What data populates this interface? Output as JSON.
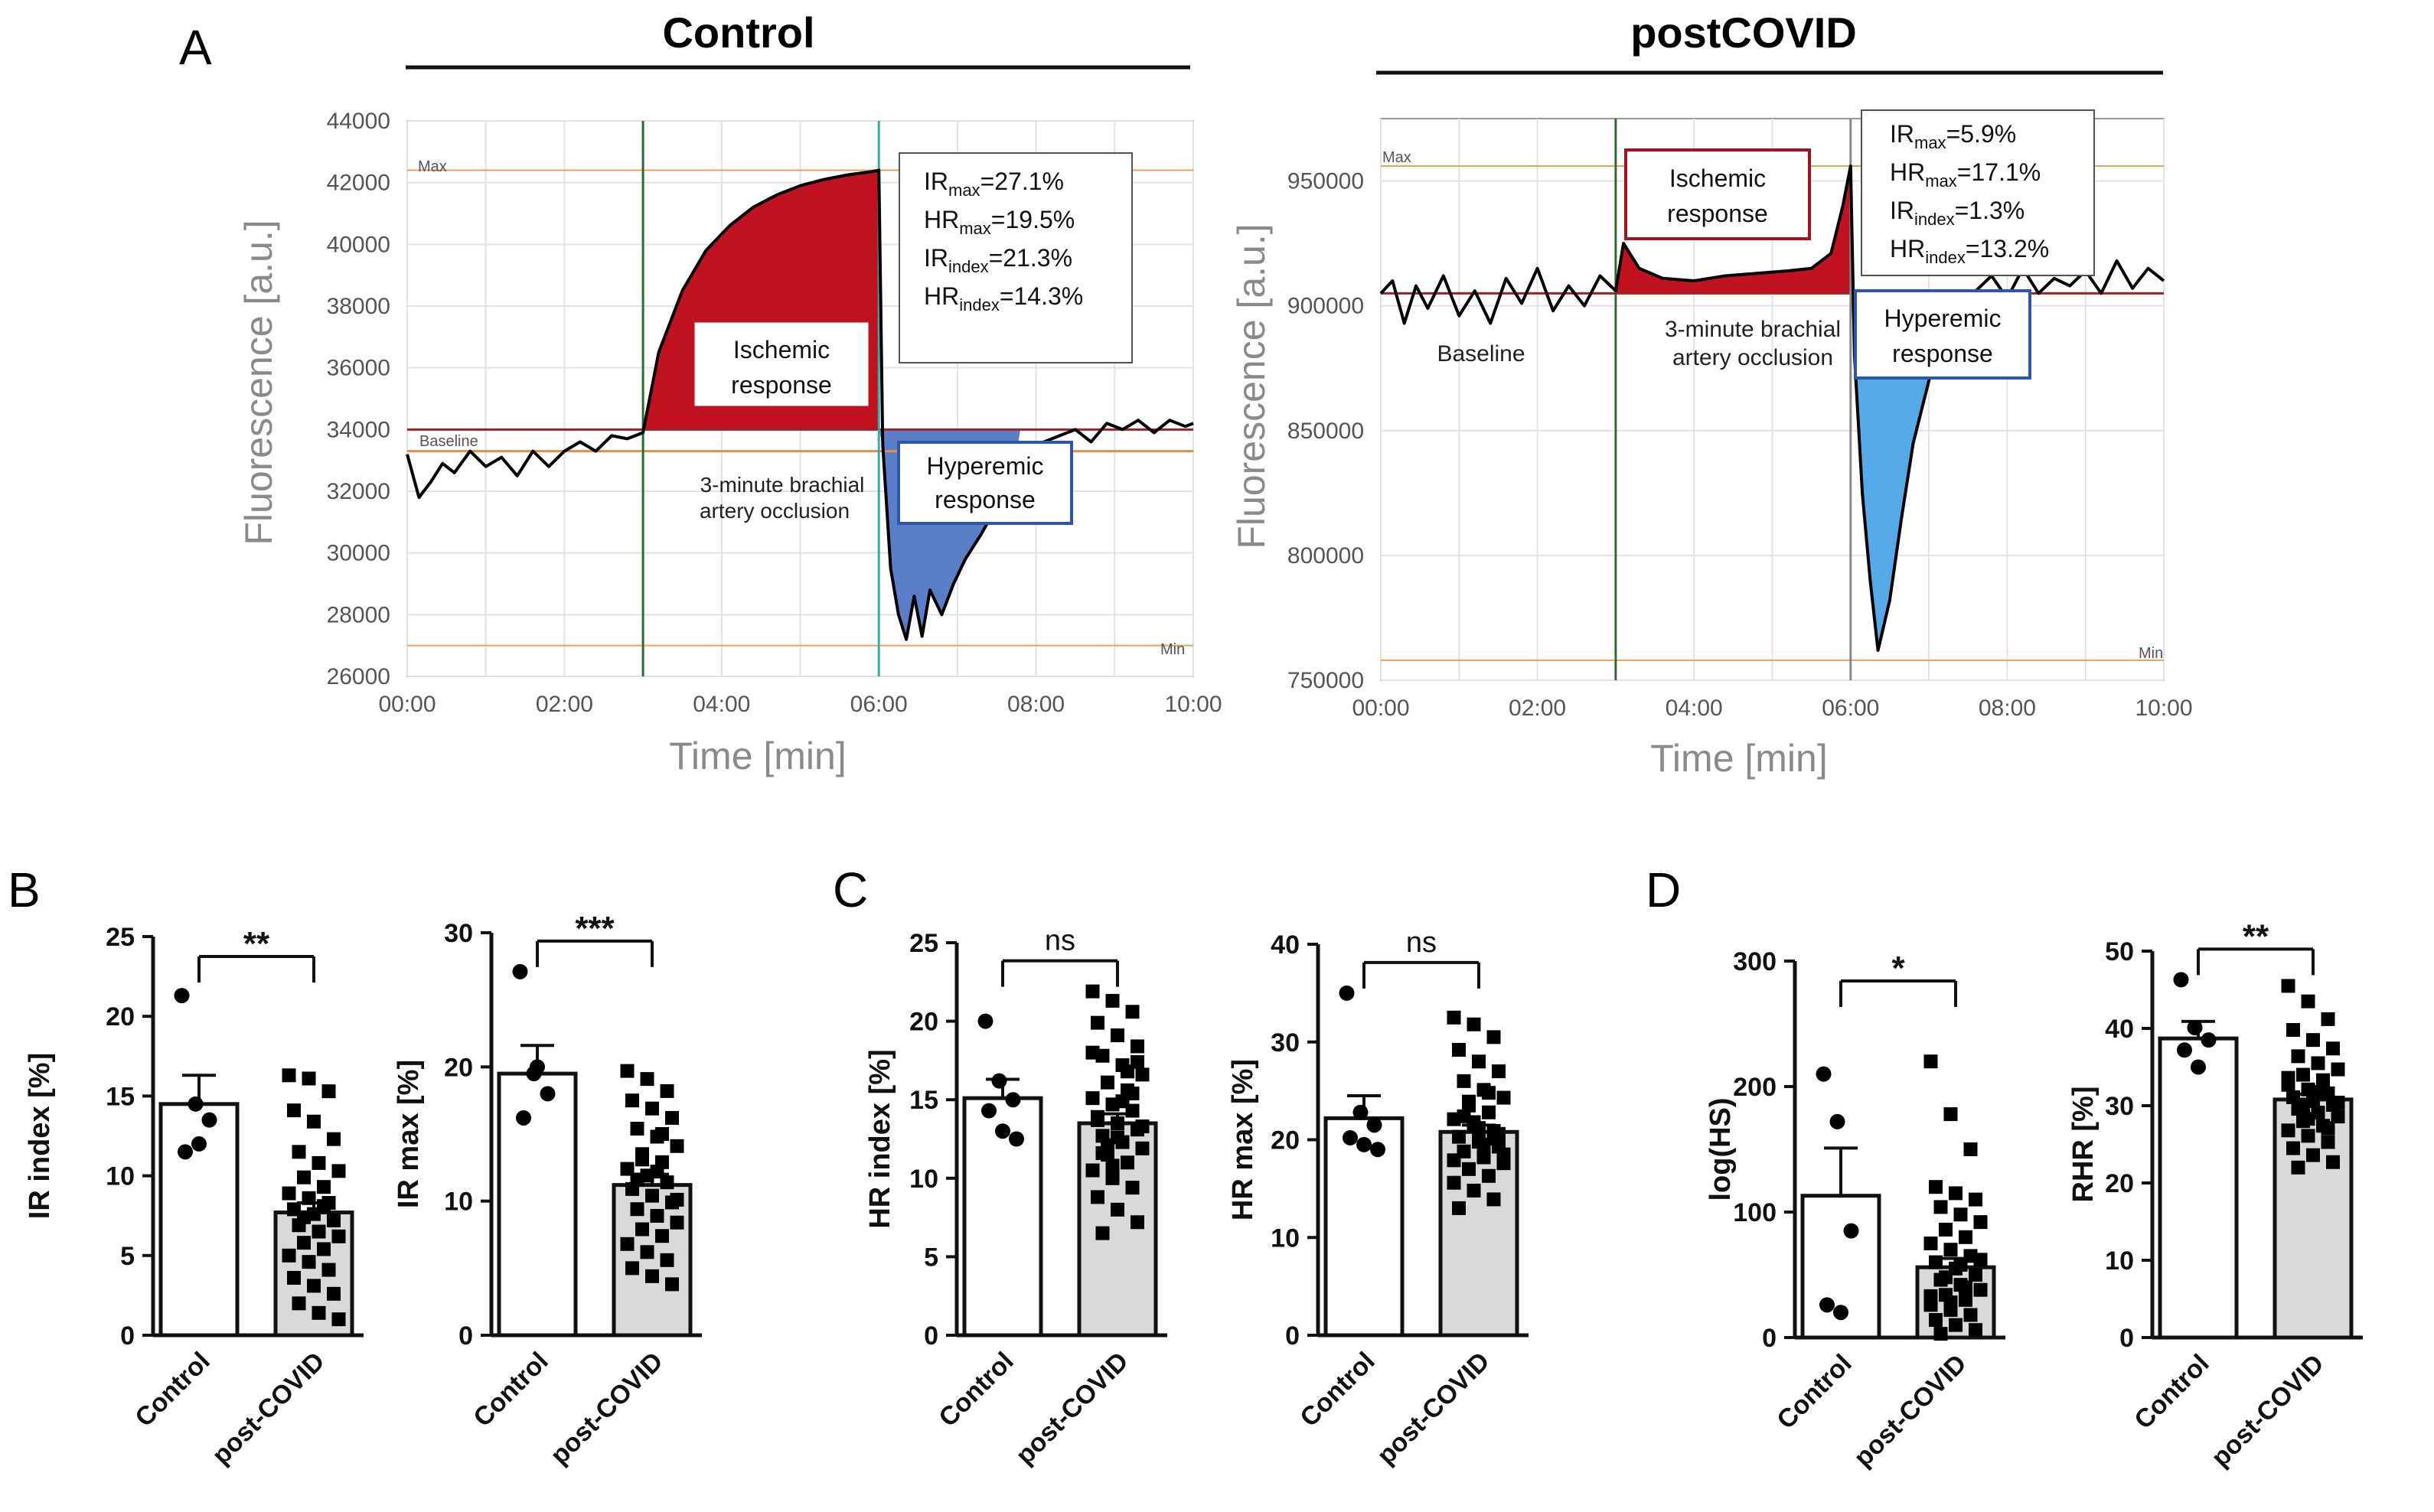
{
  "labels": {
    "panel_a": "A",
    "panel_b": "B",
    "panel_c": "C",
    "panel_d": "D"
  },
  "chart_data": [
    {
      "type": "line",
      "id": "control_trace",
      "title": "Control",
      "xlabel": "Time [min]",
      "ylabel": "Fluorescence [a.u.]",
      "xlim": [
        0,
        10
      ],
      "ylim": [
        26000,
        44000
      ],
      "x_ticks": [
        "00:00",
        "02:00",
        "04:00",
        "06:00",
        "08:00",
        "10:00"
      ],
      "y_ticks": [
        "26000",
        "28000",
        "30000",
        "32000",
        "34000",
        "36000",
        "38000",
        "40000",
        "42000",
        "44000"
      ],
      "baseline_value": 34000,
      "max_value": 42400,
      "min_value": 27000,
      "reference_labels": {
        "max": "Max",
        "min": "Min",
        "baseline": "Baseline"
      },
      "occlusion_start": 3.0,
      "occlusion_end": 6.0,
      "occlusion_label": [
        "3-minute brachial",
        "artery occlusion"
      ],
      "ischemic_label": [
        "Ischemic",
        "response"
      ],
      "hyperemic_label": [
        "Hyperemic",
        "response"
      ],
      "stats": [
        {
          "main": "IR",
          "sub": "max",
          "value": "=27.1%"
        },
        {
          "main": "HR",
          "sub": "max",
          "value": "=19.5%"
        },
        {
          "main": "IR",
          "sub": "index",
          "value": "=21.3%"
        },
        {
          "main": "HR",
          "sub": "index",
          "value": "=14.3%"
        }
      ],
      "series": [
        {
          "name": "fluorescence",
          "x": [
            0.0,
            0.15,
            0.3,
            0.45,
            0.6,
            0.8,
            1.0,
            1.2,
            1.4,
            1.6,
            1.8,
            2.0,
            2.2,
            2.4,
            2.6,
            2.8,
            3.0,
            3.2,
            3.5,
            3.8,
            4.1,
            4.4,
            4.7,
            5.0,
            5.3,
            5.6,
            5.9,
            6.0,
            6.05,
            6.15,
            6.25,
            6.35,
            6.45,
            6.55,
            6.65,
            6.8,
            6.95,
            7.1,
            7.3,
            7.5,
            7.7,
            7.9,
            8.1,
            8.3,
            8.5,
            8.7,
            8.9,
            9.1,
            9.3,
            9.5,
            9.7,
            9.9,
            10.0
          ],
          "y": [
            33200,
            31800,
            32300,
            32900,
            32600,
            33300,
            32800,
            33100,
            32500,
            33300,
            32800,
            33300,
            33600,
            33300,
            33800,
            33700,
            33900,
            36500,
            38500,
            39800,
            40600,
            41200,
            41600,
            41900,
            42100,
            42250,
            42350,
            42400,
            33500,
            29500,
            28000,
            27200,
            28600,
            27300,
            28800,
            28000,
            29000,
            29800,
            30600,
            31500,
            32400,
            33100,
            33600,
            33800,
            34000,
            33600,
            34200,
            34000,
            34300,
            33900,
            34300,
            34100,
            34200
          ]
        }
      ]
    },
    {
      "type": "line",
      "id": "postcovid_trace",
      "title": "postCOVID",
      "xlabel": "Time [min]",
      "ylabel": "Fluorescence [a.u.]",
      "xlim": [
        0,
        10
      ],
      "ylim": [
        750000,
        975000
      ],
      "x_ticks": [
        "00:00",
        "02:00",
        "04:00",
        "06:00",
        "08:00",
        "10:00"
      ],
      "y_ticks": [
        "750000",
        "800000",
        "850000",
        "900000",
        "950000"
      ],
      "baseline_value": 905000,
      "max_value": 956000,
      "min_value": 758000,
      "reference_labels": {
        "max": "Max",
        "min": "Min",
        "baseline": "Baseline"
      },
      "occlusion_start": 3.0,
      "occlusion_end": 6.0,
      "occlusion_label": [
        "3-minute brachial",
        "artery occlusion"
      ],
      "ischemic_label": [
        "Ischemic",
        "response"
      ],
      "hyperemic_label": [
        "Hyperemic",
        "response"
      ],
      "stats": [
        {
          "main": "IR",
          "sub": "max",
          "value": "=5.9%"
        },
        {
          "main": "HR",
          "sub": "max",
          "value": "=17.1%"
        },
        {
          "main": "IR",
          "sub": "index",
          "value": "=1.3%"
        },
        {
          "main": "HR",
          "sub": "index",
          "value": "=13.2%"
        }
      ],
      "series": [
        {
          "name": "fluorescence",
          "x": [
            0.0,
            0.15,
            0.3,
            0.45,
            0.6,
            0.8,
            1.0,
            1.2,
            1.4,
            1.6,
            1.8,
            2.0,
            2.2,
            2.4,
            2.6,
            2.8,
            3.0,
            3.1,
            3.3,
            3.6,
            4.0,
            4.4,
            4.8,
            5.2,
            5.5,
            5.75,
            5.9,
            6.0,
            6.05,
            6.15,
            6.25,
            6.35,
            6.5,
            6.65,
            6.8,
            7.0,
            7.2,
            7.4,
            7.6,
            7.8,
            8.0,
            8.2,
            8.4,
            8.6,
            8.8,
            9.0,
            9.2,
            9.4,
            9.6,
            9.8,
            10.0
          ],
          "y": [
            905000,
            910000,
            893000,
            908000,
            899000,
            912000,
            896000,
            906000,
            893000,
            911000,
            901000,
            915000,
            898000,
            908000,
            900000,
            912000,
            906000,
            925000,
            915000,
            911000,
            910000,
            912000,
            913000,
            914000,
            915000,
            921000,
            940000,
            956000,
            880000,
            825000,
            790000,
            762000,
            782000,
            815000,
            845000,
            870000,
            888000,
            899000,
            906000,
            912000,
            903000,
            915000,
            905000,
            911000,
            908000,
            914000,
            905000,
            918000,
            907000,
            915000,
            910000
          ]
        }
      ]
    },
    {
      "type": "bar",
      "id": "ir_index",
      "ylabel": "IR index [%]",
      "ylim": [
        0,
        25
      ],
      "y_ticks": [
        "0",
        "5",
        "10",
        "15",
        "20",
        "25"
      ],
      "categories": [
        "Control",
        "post-COVID"
      ],
      "values": [
        14.5,
        7.7
      ],
      "sem": [
        1.8,
        0.6
      ],
      "significance": "**",
      "points": [
        [
          21.3,
          14.5,
          13.5,
          11.5,
          12.0
        ],
        [
          16.3,
          16.1,
          15.3,
          14.1,
          13.4,
          12.3,
          11.5,
          10.8,
          10.3,
          9.9,
          9.3,
          8.9,
          8.6,
          8.3,
          7.9,
          7.6,
          7.2,
          6.9,
          6.5,
          6.2,
          5.8,
          5.4,
          5.0,
          4.6,
          4.1,
          3.6,
          3.1,
          2.6,
          2.0,
          1.4,
          1.0,
          7.4,
          8.1
        ]
      ]
    },
    {
      "type": "bar",
      "id": "ir_max",
      "ylabel": "IR max [%]",
      "ylim": [
        0,
        30
      ],
      "y_ticks": [
        "0",
        "10",
        "20",
        "30"
      ],
      "categories": [
        "Control",
        "post-COVID"
      ],
      "values": [
        19.5,
        11.2
      ],
      "sem": [
        2.1,
        0.8
      ],
      "significance": "***",
      "points": [
        [
          27.1,
          19.5,
          18.0,
          16.2,
          20.0
        ],
        [
          19.7,
          19.1,
          18.2,
          17.5,
          16.9,
          16.2,
          15.4,
          14.8,
          14.1,
          13.5,
          12.9,
          12.4,
          11.9,
          11.4,
          10.9,
          10.4,
          9.9,
          9.4,
          8.9,
          8.4,
          7.9,
          7.4,
          6.8,
          6.2,
          5.6,
          5.0,
          4.4,
          3.8,
          11.6,
          12.2,
          10.1,
          13.1,
          15.0
        ]
      ]
    },
    {
      "type": "bar",
      "id": "hr_index",
      "ylabel": "HR index [%]",
      "ylim": [
        0,
        25
      ],
      "y_ticks": [
        "0",
        "5",
        "10",
        "15",
        "20",
        "25"
      ],
      "categories": [
        "Control",
        "post-COVID"
      ],
      "values": [
        15.1,
        13.5
      ],
      "sem": [
        1.2,
        0.6
      ],
      "significance": "ns",
      "points": [
        [
          20.0,
          16.2,
          15.0,
          14.3,
          13.0,
          12.5
        ],
        [
          21.9,
          21.3,
          20.6,
          19.9,
          19.1,
          18.4,
          17.8,
          17.2,
          16.6,
          16.1,
          15.6,
          15.1,
          14.7,
          14.3,
          13.9,
          13.5,
          13.1,
          12.7,
          12.3,
          11.9,
          11.5,
          11.0,
          10.5,
          10.0,
          9.4,
          8.8,
          8.0,
          7.2,
          6.5,
          14.9,
          13.3,
          12.1,
          16.8,
          18.0,
          10.8,
          15.4,
          13.7,
          12.6,
          17.4,
          11.6
        ]
      ]
    },
    {
      "type": "bar",
      "id": "hr_max",
      "ylabel": "HR max [%]",
      "ylim": [
        0,
        40
      ],
      "y_ticks": [
        "0",
        "10",
        "20",
        "30",
        "40"
      ],
      "categories": [
        "Control",
        "post-COVID"
      ],
      "values": [
        22.2,
        20.8
      ],
      "sem": [
        2.3,
        0.7
      ],
      "significance": "ns",
      "points": [
        [
          35.0,
          22.8,
          21.5,
          20.2,
          19.5,
          19.0
        ],
        [
          32.5,
          31.8,
          30.5,
          29.2,
          28.0,
          27.0,
          26.0,
          25.1,
          24.3,
          23.5,
          22.8,
          22.1,
          21.5,
          20.9,
          20.3,
          19.8,
          19.3,
          18.8,
          18.2,
          17.6,
          17.0,
          16.3,
          15.6,
          14.8,
          13.9,
          13.0,
          21.2,
          20.6,
          22.4,
          19.5,
          18.5,
          23.9,
          24.8,
          17.9,
          21.8,
          20.1
        ]
      ]
    },
    {
      "type": "bar",
      "id": "log_hs",
      "ylabel": "log(HS)",
      "ylim": [
        0,
        300
      ],
      "y_ticks": [
        "0",
        "100",
        "200",
        "300"
      ],
      "categories": [
        "Control",
        "post-COVID"
      ],
      "values": [
        113,
        56
      ],
      "sem": [
        38,
        7
      ],
      "significance": "*",
      "points": [
        [
          210,
          172,
          85,
          26,
          20
        ],
        [
          220,
          178,
          150,
          120,
          115,
          110,
          104,
          98,
          92,
          86,
          80,
          75,
          70,
          65,
          60,
          55,
          50,
          46,
          42,
          38,
          34,
          30,
          26,
          22,
          18,
          14,
          10,
          6,
          3,
          58,
          62,
          48,
          40,
          33,
          28
        ]
      ]
    },
    {
      "type": "bar",
      "id": "rhr",
      "ylabel": "RHR [%]",
      "ylim": [
        0,
        50
      ],
      "y_ticks": [
        "0",
        "10",
        "20",
        "30",
        "40",
        "50"
      ],
      "categories": [
        "Control",
        "post-COVID"
      ],
      "values": [
        38.7,
        30.8
      ],
      "sem": [
        2.2,
        0.7
      ],
      "significance": "**",
      "points": [
        [
          46.3,
          40.1,
          38.5,
          37.2,
          35.0
        ],
        [
          45.5,
          43.5,
          41.2,
          39.8,
          38.5,
          37.4,
          36.4,
          35.5,
          34.7,
          34.0,
          33.3,
          32.7,
          32.1,
          31.6,
          31.1,
          30.6,
          30.1,
          29.6,
          29.1,
          28.6,
          28.0,
          27.4,
          26.8,
          26.1,
          25.3,
          24.5,
          23.6,
          22.7,
          22.0,
          31.8,
          30.4,
          29.9,
          32.9,
          33.6,
          28.3,
          27.1
        ]
      ]
    }
  ]
}
